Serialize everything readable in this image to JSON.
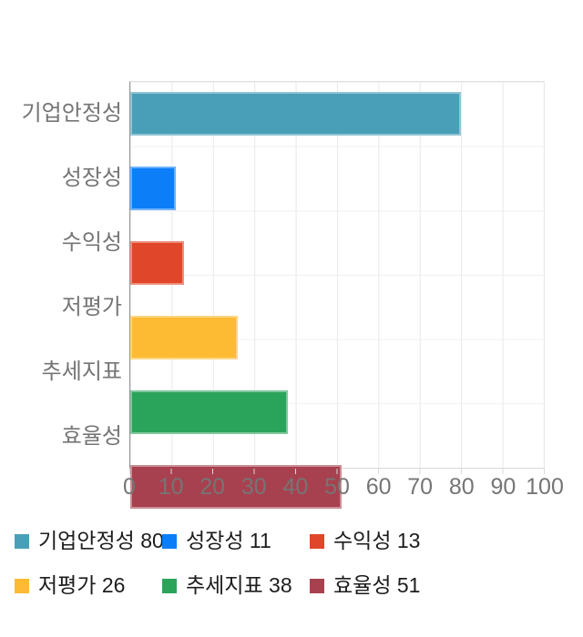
{
  "chart_data": {
    "type": "bar",
    "orientation": "horizontal",
    "categories": [
      "기업안정성",
      "성장성",
      "수익성",
      "저평가",
      "추세지표",
      "효율성"
    ],
    "values": [
      80,
      11,
      13,
      26,
      38,
      51
    ],
    "colors": [
      "#4A9FB8",
      "#0B7EF8",
      "#E0472A",
      "#FDBA33",
      "#2BA45B",
      "#A8414F"
    ],
    "xlim": [
      0,
      100
    ],
    "x_ticks": [
      "0",
      "10",
      "20",
      "30",
      "40",
      "50",
      "60",
      "70",
      "80",
      "90",
      "100"
    ],
    "grid": true,
    "legend_position": "bottom",
    "legend_labels": [
      "기업안정성 80",
      "성장성 11",
      "수익성 13",
      "저평가 26",
      "추세지표 38",
      "효율성 51"
    ]
  },
  "styles": {
    "axis_text_color": "#757575",
    "legend_text_color": "#1d1d1d",
    "axis_line_color": "#949494",
    "gridline_color": "#e8e8e8"
  }
}
